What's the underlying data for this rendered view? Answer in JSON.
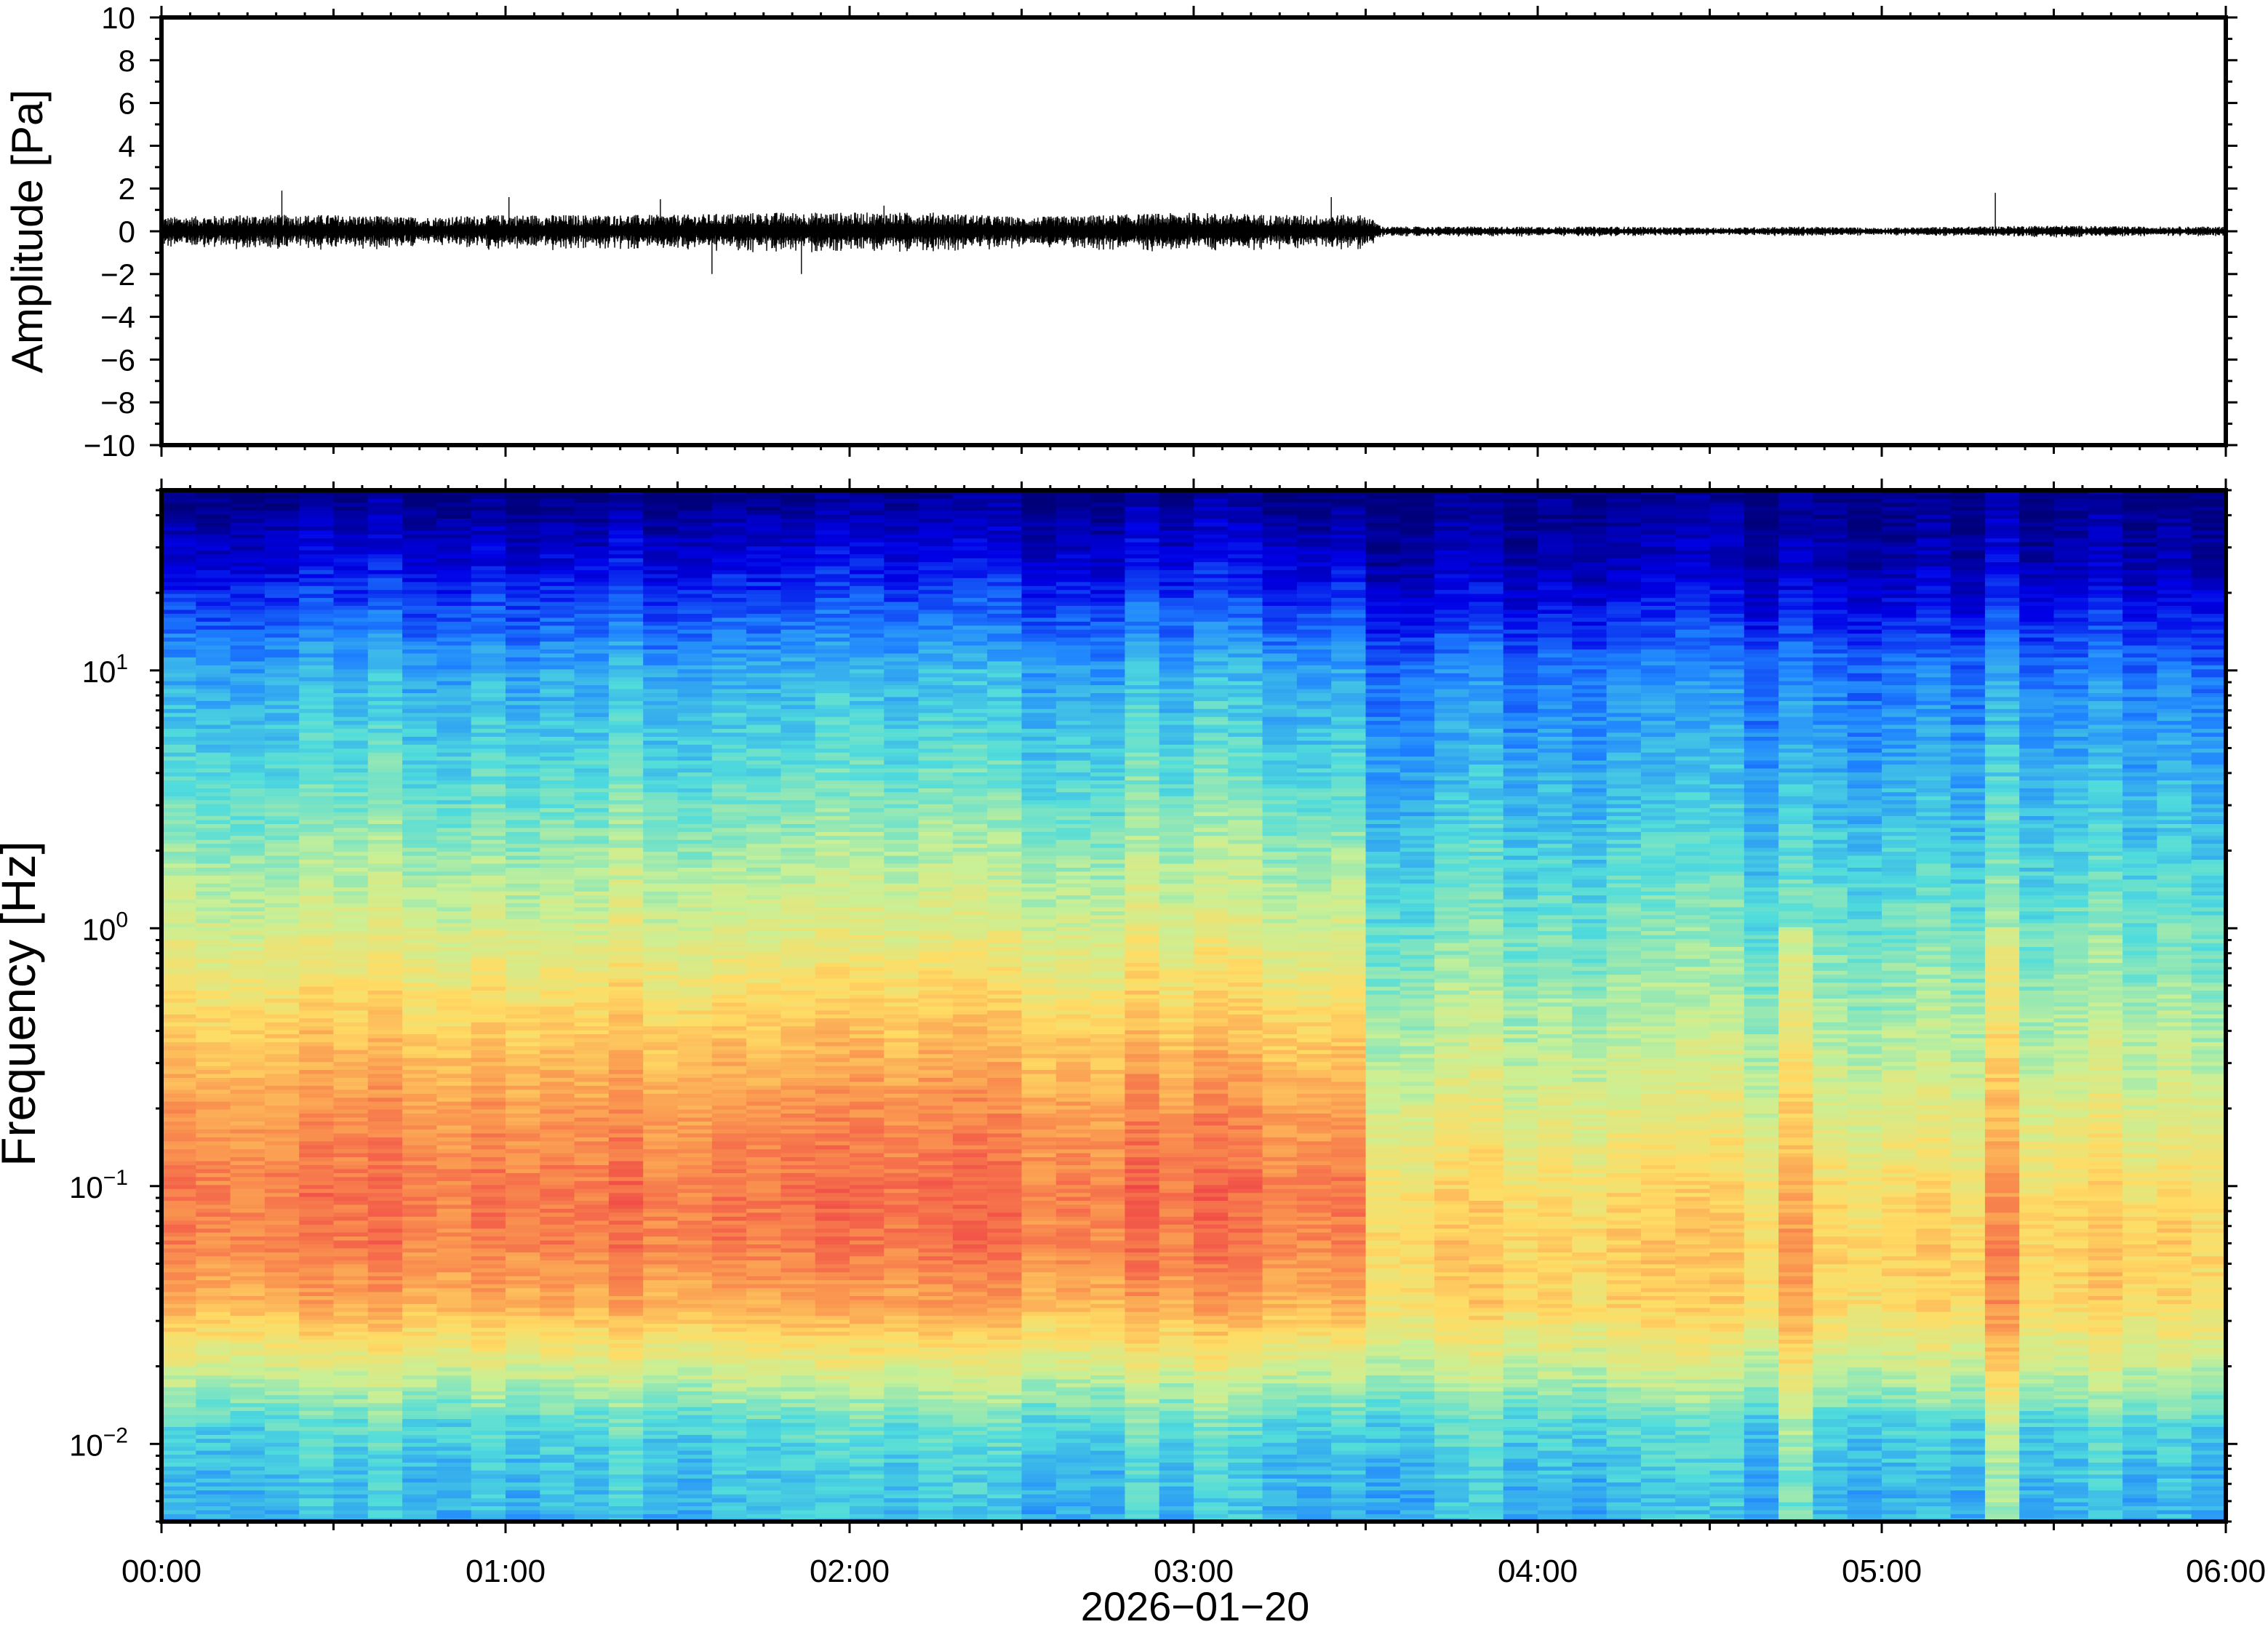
{
  "chart_data": [
    {
      "type": "line",
      "panel": "waveform",
      "title": "",
      "xlabel": "",
      "ylabel": "Amplitude [Pa]",
      "ylim": [
        -10,
        10
      ],
      "yticks": [
        10,
        8,
        6,
        4,
        2,
        0,
        -2,
        -4,
        -6,
        -8,
        -10
      ],
      "ytick_labels": [
        "10",
        "8",
        "6",
        "4",
        "2",
        "0",
        "−2",
        "−4",
        "−6",
        "−8",
        "−10"
      ],
      "xlim_hours": [
        0,
        6
      ],
      "grid": false,
      "legend": "none",
      "line_color": "#000000",
      "series": [
        {
          "x_hours": [
            0.0,
            0.25,
            0.5,
            0.75,
            1.0,
            1.25,
            1.5,
            1.75,
            2.0,
            2.25,
            2.5,
            2.75,
            3.0,
            3.25,
            3.5,
            3.55,
            3.75,
            4.0,
            4.25,
            4.5,
            4.75,
            5.0,
            5.25,
            5.5,
            5.75,
            6.0
          ],
          "envelope_pa": [
            0.6,
            0.7,
            0.7,
            0.6,
            0.7,
            0.7,
            0.7,
            0.8,
            0.8,
            0.8,
            0.6,
            0.7,
            0.8,
            0.7,
            0.7,
            0.2,
            0.2,
            0.2,
            0.2,
            0.15,
            0.2,
            0.15,
            0.2,
            0.25,
            0.2,
            0.2
          ]
        }
      ],
      "spikes": [
        {
          "x_hours": 0.35,
          "value": 1.9
        },
        {
          "x_hours": 1.01,
          "value": 1.6
        },
        {
          "x_hours": 1.45,
          "value": 1.5
        },
        {
          "x_hours": 1.6,
          "value": -2.0
        },
        {
          "x_hours": 1.86,
          "value": -2.0
        },
        {
          "x_hours": 2.1,
          "value": 1.2
        },
        {
          "x_hours": 3.4,
          "value": 1.6
        },
        {
          "x_hours": 5.33,
          "value": 1.8
        }
      ]
    },
    {
      "type": "heatmap",
      "panel": "spectrogram",
      "title": "",
      "xlabel": "2026−01−20",
      "ylabel": "Frequency [Hz]",
      "y_scale": "log",
      "ylim_hz": [
        0.005,
        50
      ],
      "yticks_hz": [
        10,
        1,
        0.1,
        0.01
      ],
      "ytick_labels": [
        {
          "base": "10",
          "exp": "1"
        },
        {
          "base": "10",
          "exp": "0"
        },
        {
          "base": "10",
          "exp": "−1"
        },
        {
          "base": "10",
          "exp": "−2"
        }
      ],
      "xlim_hours": [
        0,
        6
      ],
      "xticks_hours": [
        0,
        1,
        2,
        3,
        4,
        5,
        6
      ],
      "xtick_labels": [
        "00:00",
        "01:00",
        "02:00",
        "03:00",
        "04:00",
        "05:00",
        "06:00"
      ],
      "colormap": "jet",
      "colormap_stops": [
        "#00007a",
        "#0000e6",
        "#1e82ff",
        "#50dcdc",
        "#c8f096",
        "#ffdc64",
        "#fa9650",
        "#f04646"
      ],
      "grid": false,
      "legend": "none",
      "time_blocks": 60,
      "freq_profile": {
        "freq_hz": [
          0.005,
          0.008,
          0.012,
          0.02,
          0.035,
          0.06,
          0.1,
          0.2,
          0.4,
          1.0,
          3.0,
          10.0,
          25.0,
          50.0
        ],
        "level_active": [
          0.38,
          0.4,
          0.45,
          0.62,
          0.82,
          0.91,
          0.92,
          0.86,
          0.76,
          0.62,
          0.48,
          0.36,
          0.16,
          0.02
        ],
        "level_quiet": [
          0.36,
          0.38,
          0.43,
          0.58,
          0.72,
          0.74,
          0.7,
          0.62,
          0.55,
          0.47,
          0.38,
          0.28,
          0.08,
          0.01
        ]
      },
      "activity_by_hour": {
        "x_hours": [
          0.0,
          3.5,
          3.55,
          6.0
        ],
        "active": [
          1.0,
          1.0,
          0.0,
          0.0
        ]
      },
      "bursts": [
        {
          "x_hours": 4.75,
          "strength": 0.14
        },
        {
          "x_hours": 5.33,
          "strength": 0.18
        }
      ]
    }
  ]
}
